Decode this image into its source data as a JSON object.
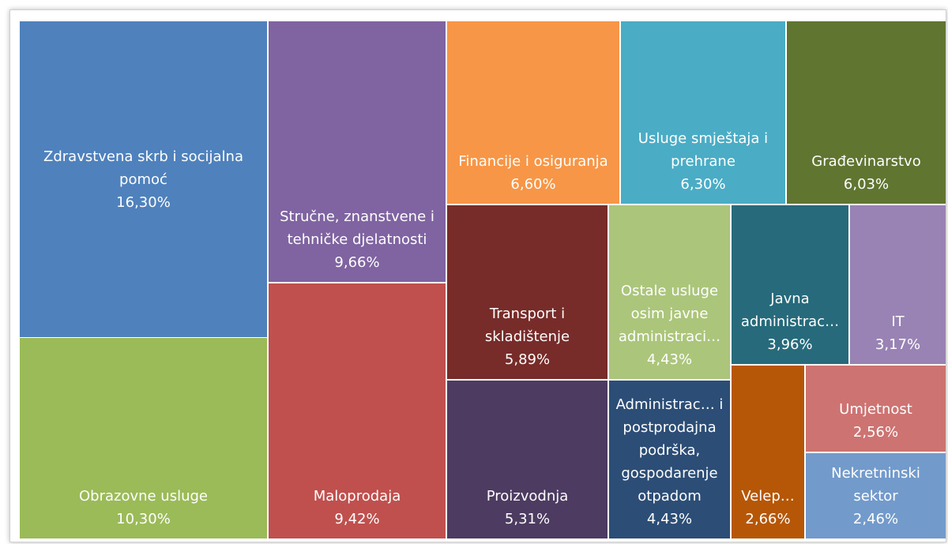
{
  "chart_data": {
    "type": "treemap",
    "categories": [
      "Zdravstvena skrb i socijalna pomoć",
      "Obrazovne usluge",
      "Stručne, znanstvene i tehničke djelatnosti",
      "Maloprodaja",
      "Financije i osiguranja",
      "Usluge smještaja i prehrane",
      "Građevinarstvo",
      "Transport i skladištenje",
      "Proizvodnja",
      "Ostale usluge osim javne administraci…",
      "Administrac… i postprodajna podrška, gospodarenje otpadom",
      "Javna administrac…",
      "IT",
      "Velep…",
      "Umjetnost",
      "Nekretninski sektor"
    ],
    "values": [
      16.3,
      10.3,
      9.66,
      9.42,
      6.6,
      6.3,
      6.03,
      5.89,
      5.31,
      4.43,
      4.43,
      3.96,
      3.17,
      2.66,
      2.56,
      2.46
    ],
    "value_labels": [
      "16,30%",
      "10,30%",
      "9,66%",
      "9,42%",
      "6,60%",
      "6,30%",
      "6,03%",
      "5,89%",
      "5,31%",
      "4,43%",
      "4,43%",
      "3,96%",
      "3,17%",
      "2,66%",
      "2,56%",
      "2,46%"
    ],
    "colors": [
      "#4f81bd",
      "#9bbb59",
      "#8064a2",
      "#c0504d",
      "#f79646",
      "#4bacc6",
      "#5f7530",
      "#772c2a",
      "#4d3b62",
      "#abc57b",
      "#2c4d75",
      "#276a7c",
      "#9983b5",
      "#b65708",
      "#cd7371",
      "#729aca"
    ]
  }
}
